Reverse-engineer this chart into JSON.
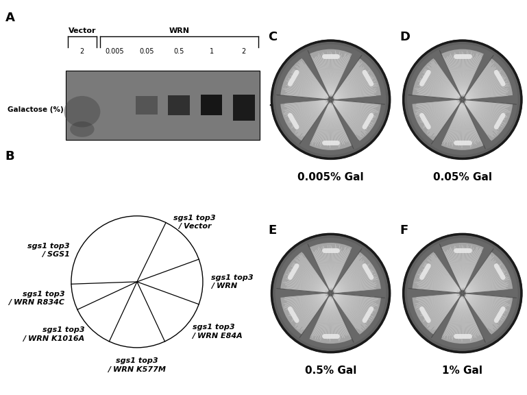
{
  "panel_labels": [
    "A",
    "B",
    "C",
    "D",
    "E",
    "F"
  ],
  "panel_label_fontsize": 13,
  "panel_label_weight": "bold",
  "blot_labels": {
    "vector_label": "Vector",
    "wrn_label": "WRN",
    "galactose_label": "Galactose (%)",
    "lanes": [
      "2",
      "0.005",
      "0.05",
      "0.5",
      "1",
      "2"
    ]
  },
  "sector_boundaries_deg": [
    64,
    20,
    -20,
    -65,
    -115,
    -155,
    -178
  ],
  "label_configs": [
    [
      42,
      "sgs1 top3\n/ Vector",
      "center",
      "bottom",
      1.18
    ],
    [
      0,
      "sgs1 top3\n/ WRN",
      "left",
      "center",
      1.13
    ],
    [
      -42,
      "sgs1 top3\n/ WRN E84A",
      "left",
      "center",
      1.13
    ],
    [
      -90,
      "sgs1 top3\n/ WRN K577M",
      "center",
      "top",
      1.15
    ],
    [
      -135,
      "sgs1 top3\n/ WRN K1016A",
      "right",
      "center",
      1.13
    ],
    [
      -167,
      "sgs1 top3\n/ WRN R834C",
      "right",
      "center",
      1.13
    ],
    [
      155,
      "sgs1 top3\n/ SGS1",
      "right",
      "center",
      1.13
    ]
  ],
  "plate_labels": [
    "0.005% Gal",
    "0.05% Gal",
    "0.5% Gal",
    "1% Gal"
  ],
  "plate_panel_letters": [
    "C",
    "D",
    "E",
    "F"
  ],
  "plate_label_fontsize": 11,
  "background_color": "#ffffff"
}
